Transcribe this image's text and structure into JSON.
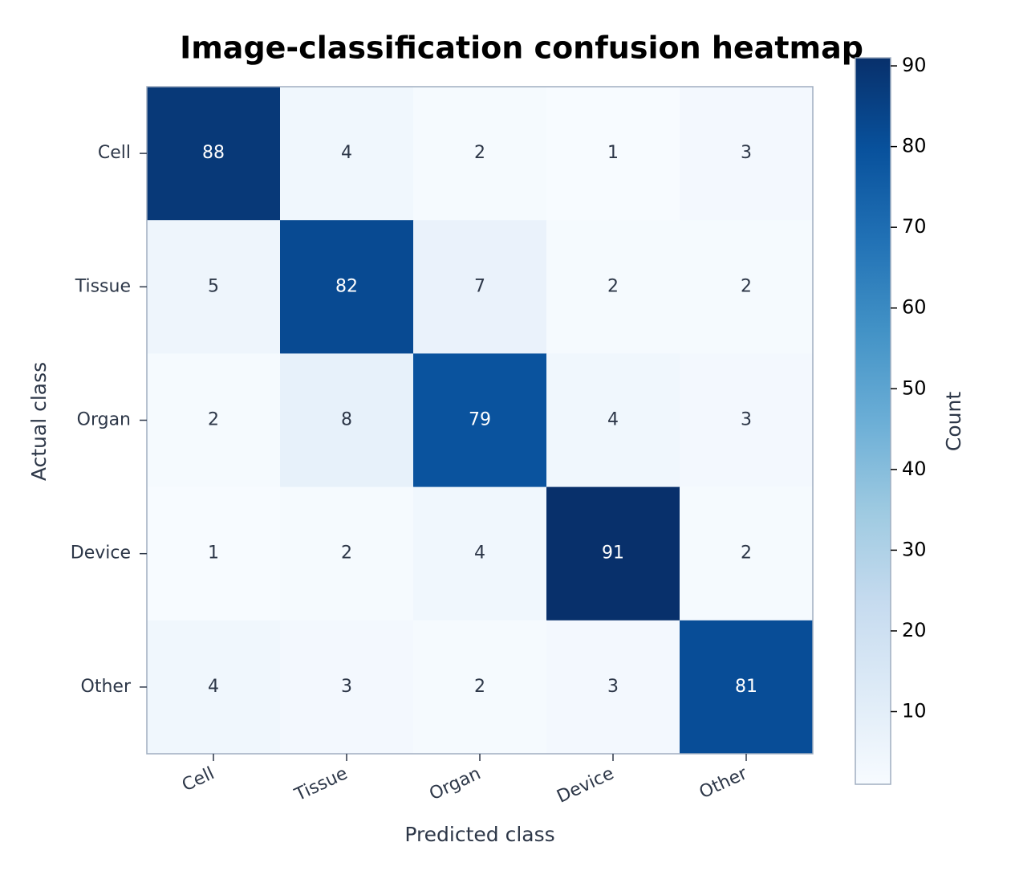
{
  "chart_data": {
    "type": "heatmap",
    "title": "Image-classification confusion heatmap",
    "x_label": "Predicted class",
    "y_label": "Actual class",
    "x_categories": [
      "Cell",
      "Tissue",
      "Organ",
      "Device",
      "Other"
    ],
    "y_categories": [
      "Cell",
      "Tissue",
      "Organ",
      "Device",
      "Other"
    ],
    "values": [
      [
        88,
        4,
        2,
        1,
        3
      ],
      [
        5,
        82,
        7,
        2,
        2
      ],
      [
        2,
        8,
        79,
        4,
        3
      ],
      [
        1,
        2,
        4,
        91,
        2
      ],
      [
        4,
        3,
        2,
        3,
        81
      ]
    ],
    "colormap": "Blues",
    "colorbar_label": "Count",
    "clim": [
      1,
      91
    ],
    "cticks": [
      10,
      20,
      30,
      40,
      50,
      60,
      70,
      80,
      90
    ]
  }
}
